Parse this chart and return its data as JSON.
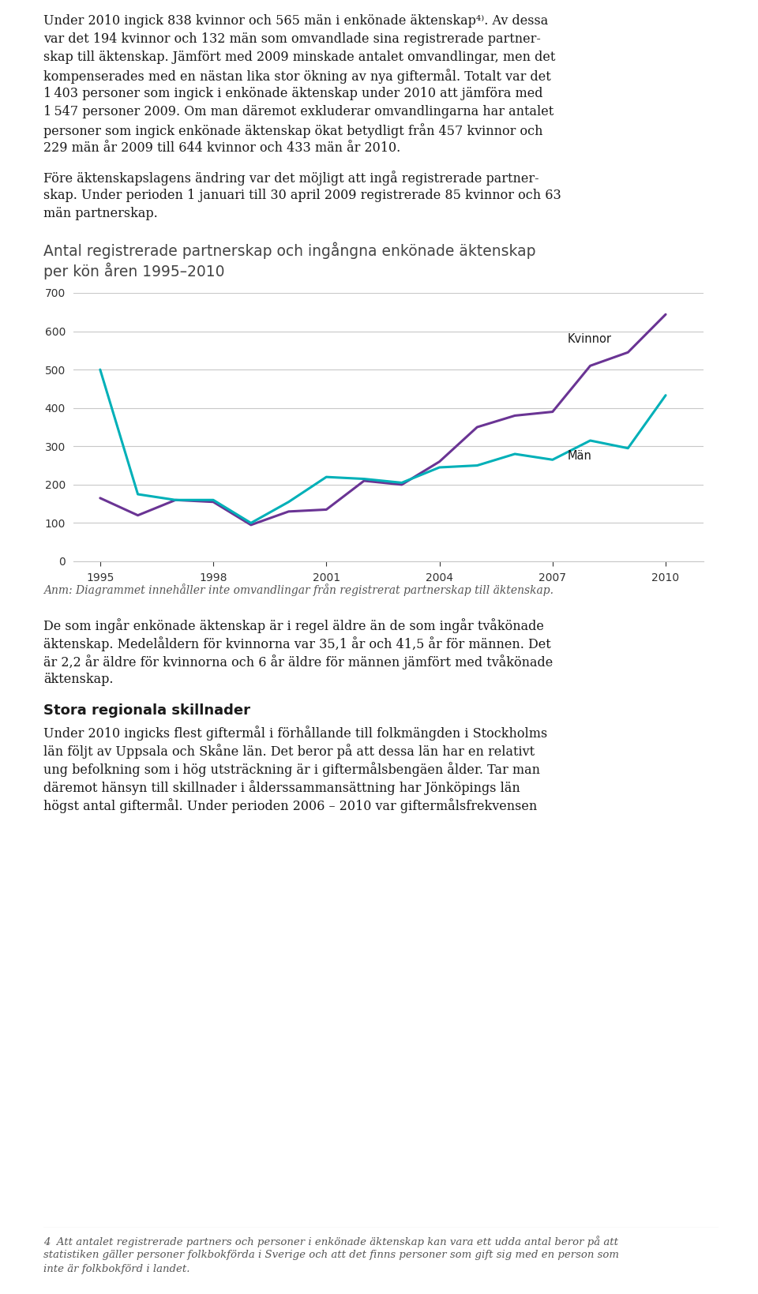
{
  "title_line1": "Antal registrerade partnerskap och ingångna enkönade äktenskap",
  "title_line2": "per kön åren 1995–2010",
  "years": [
    1995,
    1996,
    1997,
    1998,
    1999,
    2000,
    2001,
    2002,
    2003,
    2004,
    2005,
    2006,
    2007,
    2008,
    2009,
    2010
  ],
  "kvinnor": [
    165,
    120,
    160,
    155,
    95,
    130,
    135,
    210,
    200,
    260,
    350,
    380,
    390,
    510,
    545,
    644
  ],
  "man": [
    500,
    175,
    160,
    160,
    100,
    155,
    220,
    215,
    205,
    245,
    250,
    280,
    265,
    315,
    295,
    433
  ],
  "kvinnor_color": "#6a3494",
  "man_color": "#00b0b8",
  "grid_color": "#c8c8c8",
  "background_color": "#ffffff",
  "ylim": [
    0,
    700
  ],
  "yticks": [
    0,
    100,
    200,
    300,
    400,
    500,
    600,
    700
  ],
  "xticks": [
    1995,
    1998,
    2001,
    2004,
    2007,
    2010
  ],
  "para1_lines": [
    "Under 2010 ingick 838 kvinnor och 565 män i enkönade äktenskap⁴⁾. Av dessa",
    "var det 194 kvinnor och 132 män som omvandlade sina registrerade partner-",
    "skap till äktenskap. Jämfört med 2009 minskade antalet omvandlingar, men det",
    "kompenserades med en nästan lika stor ökning av nya giftermål. Totalt var det",
    "1 403 personer som ingick i enkönade äktenskap under 2010 att jämföra med",
    "1 547 personer 2009. Om man däremot exkluderar omvandlingarna har antalet",
    "personer som ingick enkönade äktenskap ökat betydligt från 457 kvinnor och",
    "229 män år 2009 till 644 kvinnor och 433 män år 2010."
  ],
  "para2_lines": [
    "Före äktenskapslagens ändring var det möjligt att ingå registrerade partner-",
    "skap. Under perioden 1 januari till 30 april 2009 registrerade 85 kvinnor och 63",
    "män partnerskap."
  ],
  "note": "Anm: Diagrammet innehåller inte omvandlingar från registrerat partnerskap till äktenskap.",
  "para3_lines": [
    "De som ingår enkönade äktenskap är i regel äldre än de som ingår tvåkönade",
    "äktenskap. Medelåldern för kvinnorna var 35,1 år och 41,5 år för männen. Det",
    "är 2,2 år äldre för kvinnorna och 6 år äldre för männen jämfört med tvåkönade",
    "äktenskap."
  ],
  "section_heading": "Stora regionala skillnader",
  "para4_lines": [
    "Under 2010 ingicks flest giftermål i förhållande till folkmängden i Stockholms",
    "län följt av Uppsala och Skåne län. Det beror på att dessa län har en relativt",
    "ung befolkning som i hög utsträckning är i giftermålsbengäen ålder. Tar man",
    "däremot hänsyn till skillnader i ålderssammansättning har Jönköpings län",
    "högst antal giftermål. Under perioden 2006 – 2010 var giftermålsfrekvensen"
  ],
  "footnote_lines": [
    "4  Att antalet registrerade partners och personer i enkönade äktenskap kan vara ett udda antal beror på att",
    "statistiken gäller personer folkbokförda i Sverige och att det finns personer som gift sig med en person som",
    "inte är folkbokförd i landet."
  ]
}
